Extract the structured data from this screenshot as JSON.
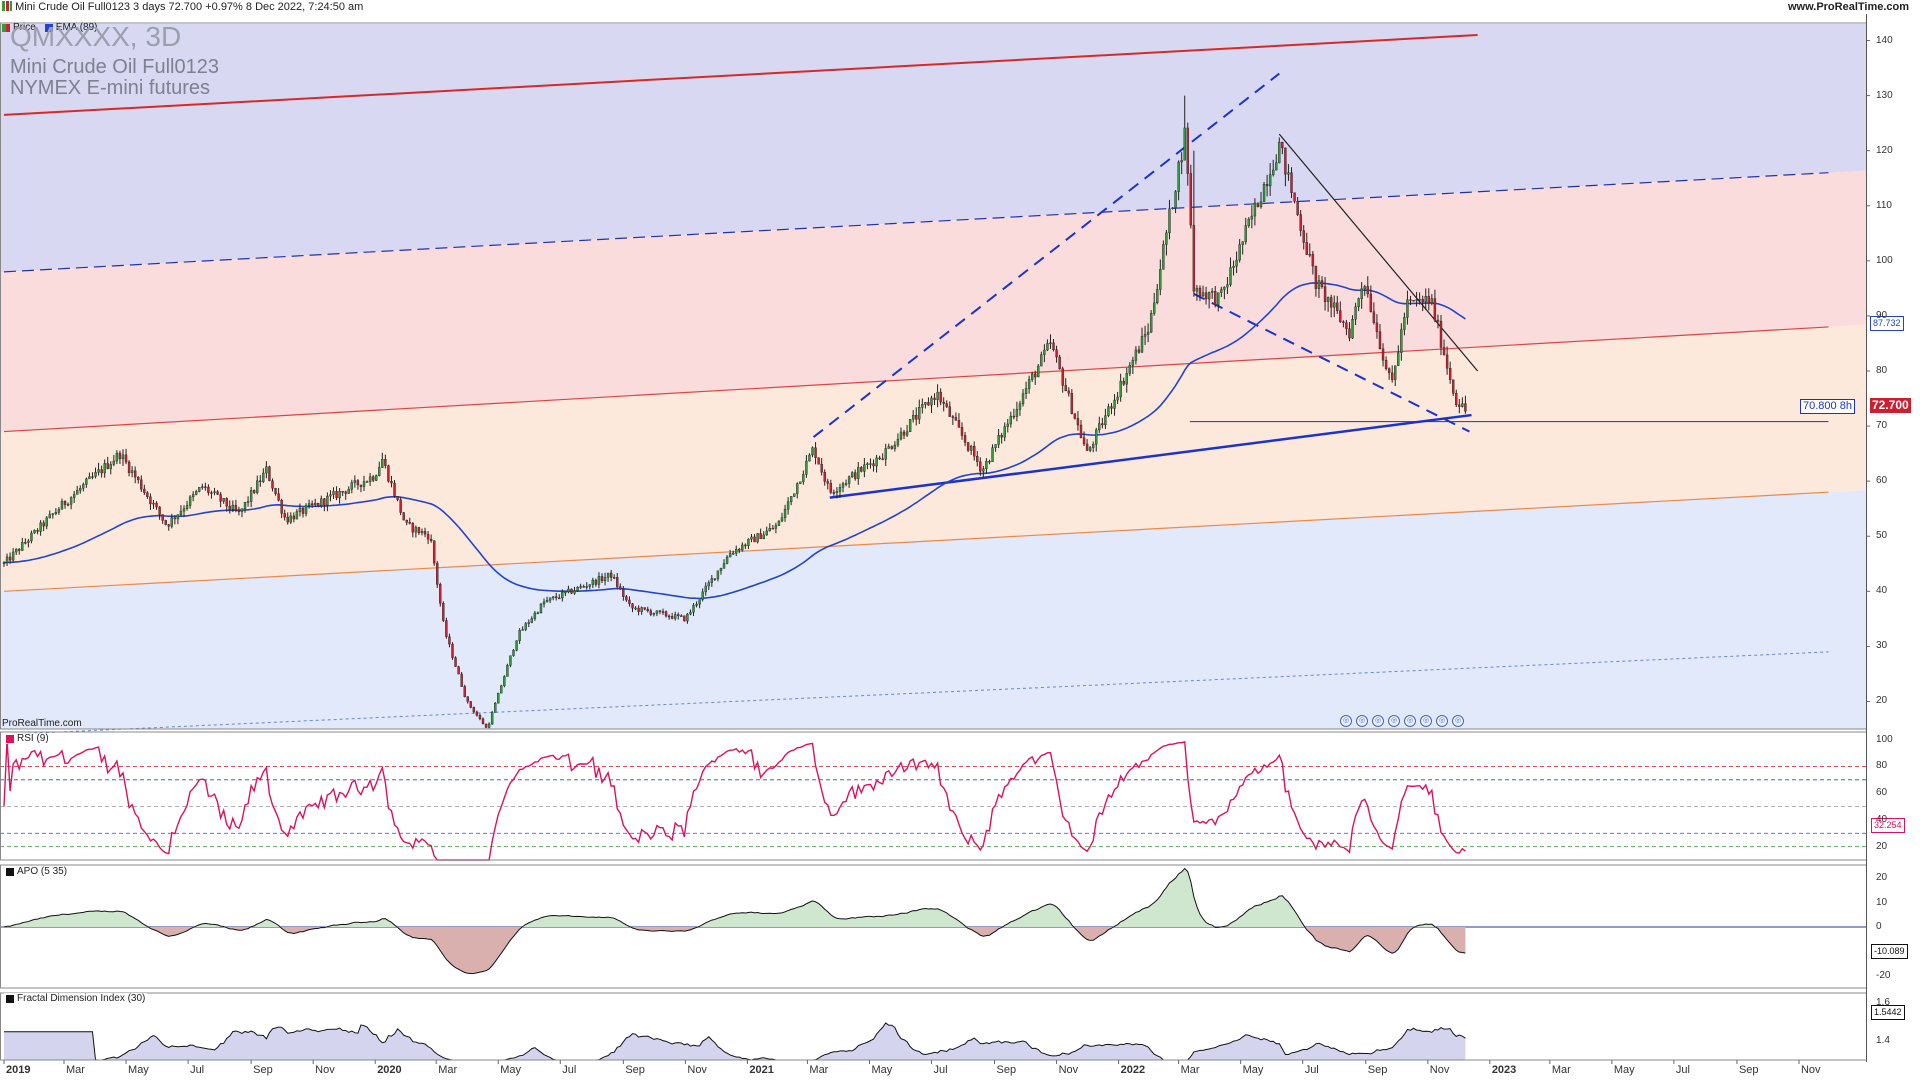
{
  "header": {
    "title_line": "Mini Crude Oil Full0123 3 days 72.700 +0.97% 8 Dec 2022, 7:24:50 am",
    "website": "www.ProRealTime.com"
  },
  "legend": {
    "price_label": "Price",
    "ema_label": "EMA (89)"
  },
  "symbol": {
    "code": "QMXXXX, 3D",
    "name": "Mini Crude Oil Full0123",
    "exchange": "NYMEX E-mini futures"
  },
  "watermark": "ProRealTime.com",
  "colors": {
    "up_candle": "#2e9d3a",
    "down_candle": "#cc1f2f",
    "ema": "#2244cc",
    "rsi": "#e0105a",
    "trend": "#1a33cc",
    "channel_top": "#d42a2a",
    "channel_mid": "#dd4444",
    "channel_low": "#e98a4a"
  },
  "panels": {
    "rsi": {
      "label": "RSI (9)",
      "value_tag": "32.254"
    },
    "apo": {
      "label": "APO (5 35)",
      "value_tag": "-10.089"
    },
    "fdi": {
      "label": "Fractal Dimension Index (30)",
      "value_tag": "1.5442"
    }
  },
  "tags": {
    "ema_tag": "87.732",
    "price_tag": "72.700",
    "support_tag": "70.800 8h"
  },
  "chart_data": {
    "type": "candlestick",
    "y_ticks": [
      "140",
      "130",
      "120",
      "110",
      "100",
      "90",
      "80",
      "70",
      "60",
      "50",
      "40",
      "30",
      "20"
    ],
    "rsi_ticks": [
      "100",
      "80",
      "60",
      "40",
      "20"
    ],
    "apo_ticks": [
      "20",
      "10",
      "0",
      "-20"
    ],
    "fdi_ticks": [
      "1.6",
      "1.4"
    ],
    "x_ticks": [
      "2019",
      "Mar",
      "May",
      "Jul",
      "Sep",
      "Nov",
      "2020",
      "Mar",
      "May",
      "Jul",
      "Sep",
      "Nov",
      "2021",
      "Mar",
      "May",
      "Jul",
      "Sep",
      "Nov",
      "2022",
      "Mar",
      "May",
      "Jul",
      "Sep",
      "Nov",
      "2023",
      "Mar",
      "May",
      "Jul",
      "Sep",
      "Nov"
    ],
    "ylim": [
      15,
      143
    ],
    "price_keypoints": [
      [
        "2019-01-01",
        45
      ],
      [
        "2019-03-01",
        56
      ],
      [
        "2019-04-25",
        65
      ],
      [
        "2019-06-10",
        52
      ],
      [
        "2019-07-15",
        59
      ],
      [
        "2019-08-20",
        54
      ],
      [
        "2019-09-16",
        62
      ],
      [
        "2019-10-05",
        53
      ],
      [
        "2019-12-31",
        61
      ],
      [
        "2020-01-08",
        64
      ],
      [
        "2020-01-31",
        52
      ],
      [
        "2020-02-24",
        50
      ],
      [
        "2020-03-09",
        33
      ],
      [
        "2020-03-31",
        20
      ],
      [
        "2020-04-20",
        15
      ],
      [
        "2020-05-20",
        32
      ],
      [
        "2020-06-15",
        38
      ],
      [
        "2020-08-20",
        43
      ],
      [
        "2020-09-08",
        37
      ],
      [
        "2020-11-01",
        35
      ],
      [
        "2020-12-15",
        47
      ],
      [
        "2021-01-31",
        52
      ],
      [
        "2021-03-07",
        66
      ],
      [
        "2021-03-23",
        58
      ],
      [
        "2021-05-15",
        65
      ],
      [
        "2021-07-06",
        76
      ],
      [
        "2021-08-20",
        62
      ],
      [
        "2021-10-26",
        85
      ],
      [
        "2021-12-01",
        65
      ],
      [
        "2022-01-31",
        88
      ],
      [
        "2022-03-08",
        124
      ],
      [
        "2022-03-16",
        95
      ],
      [
        "2022-04-11",
        93
      ],
      [
        "2022-06-08",
        121
      ],
      [
        "2022-07-14",
        96
      ],
      [
        "2022-08-16",
        87
      ],
      [
        "2022-08-30",
        97
      ],
      [
        "2022-09-26",
        77
      ],
      [
        "2022-10-11",
        92
      ],
      [
        "2022-11-04",
        93
      ],
      [
        "2022-11-28",
        75
      ],
      [
        "2022-12-08",
        72.7
      ]
    ],
    "spikes": [
      {
        "date": "2022-03-08",
        "high": 130
      },
      {
        "date": "2022-03-16",
        "high": 120
      }
    ],
    "ema_period": 89,
    "rsi_period": 9,
    "apo_params": [
      5,
      35
    ],
    "fdi_period": 30,
    "last_price": 72.7,
    "support_level": 70.8,
    "lines": {
      "channel_top": [
        [
          "2019-01-01",
          126.5
        ],
        [
          "2022-12-20",
          141
        ]
      ],
      "channel_mid_dashed": [
        [
          "2019-01-01",
          98
        ],
        [
          "2023-11-30",
          116
        ]
      ],
      "channel_median": [
        [
          "2019-01-01",
          69
        ],
        [
          "2023-11-30",
          88
        ]
      ],
      "channel_low": [
        [
          "2019-01-01",
          40
        ],
        [
          "2023-11-30",
          58
        ]
      ],
      "channel_bottom_dotted": [
        [
          "2019-01-01",
          14
        ],
        [
          "2023-11-30",
          29
        ]
      ],
      "support_trend": [
        [
          "2021-03-23",
          57
        ],
        [
          "2022-12-14",
          72
        ]
      ],
      "rising_dashed": [
        [
          "2021-03-07",
          68
        ],
        [
          "2022-06-08",
          134
        ]
      ],
      "falling_solid": [
        [
          "2022-06-08",
          123
        ],
        [
          "2022-12-20",
          80
        ]
      ],
      "falling_dashed": [
        [
          "2022-03-16",
          94
        ],
        [
          "2022-12-12",
          69
        ]
      ],
      "horizontal_support": [
        [
          "2022-03-12",
          70.8
        ],
        [
          "2023-11-30",
          70.8
        ]
      ]
    }
  }
}
